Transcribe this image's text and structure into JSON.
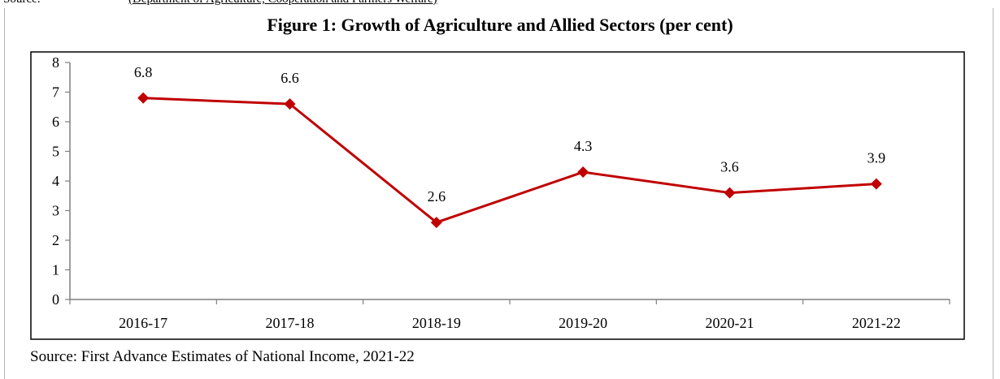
{
  "header": {
    "source_label": "Source:",
    "source_title": "(Department of Agriculture, Cooperation and Farmers Welfare)"
  },
  "figure": {
    "title": "Figure 1: Growth of Agriculture and Allied Sectors (per cent)",
    "source_note": "Source: First Advance Estimates of National Income, 2021-22"
  },
  "chart_data": {
    "type": "line",
    "title": "Figure 1: Growth of Agriculture and Allied Sectors (per cent)",
    "categories": [
      "2016-17",
      "2017-18",
      "2018-19",
      "2019-20",
      "2020-21",
      "2021-22"
    ],
    "series": [
      {
        "values": [
          6.8,
          6.6,
          2.6,
          4.3,
          3.6,
          3.9
        ],
        "color": "#c00000",
        "marker": "diamond"
      }
    ],
    "data_labels": [
      "6.8",
      "6.6",
      "2.6",
      "4.3",
      "3.6",
      "3.9"
    ],
    "yticks": [
      0,
      1,
      2,
      3,
      4,
      5,
      6,
      7,
      8
    ],
    "ylim": [
      0,
      8
    ],
    "xlabel": "",
    "ylabel": "",
    "grid": false,
    "legend": "none"
  }
}
